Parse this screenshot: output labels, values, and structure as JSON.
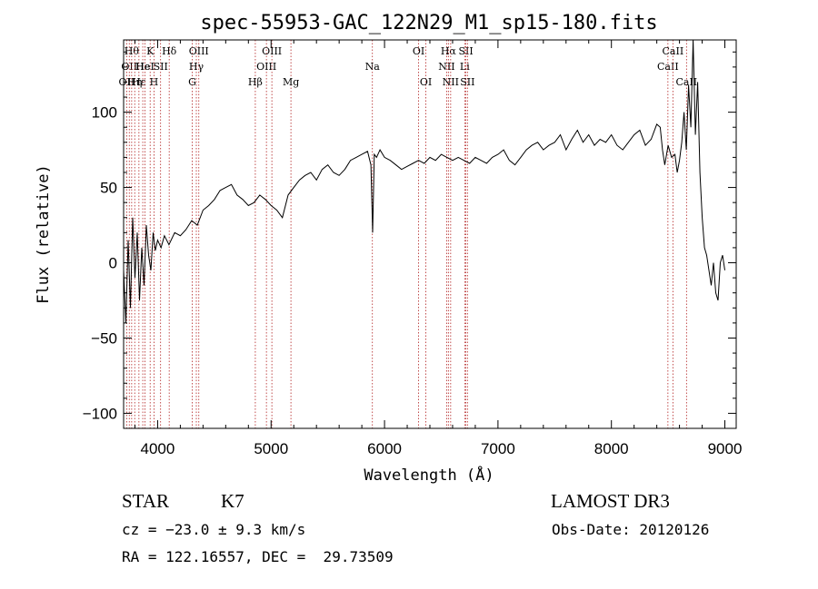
{
  "chart_data": {
    "type": "line",
    "title": "spec-55953-GAC_122N29_M1_sp15-180.fits",
    "xlabel": "Wavelength (Å)",
    "ylabel": "Flux (relative)",
    "xlim": [
      3700,
      9100
    ],
    "ylim": [
      -110,
      148
    ],
    "xticks": [
      4000,
      5000,
      6000,
      7000,
      8000,
      9000
    ],
    "yticks": [
      -100,
      -50,
      0,
      50,
      100
    ],
    "series": [
      {
        "name": "",
        "x": [
          3700,
          3720,
          3740,
          3760,
          3780,
          3800,
          3820,
          3840,
          3860,
          3880,
          3900,
          3920,
          3940,
          3960,
          3980,
          4000,
          4030,
          4060,
          4100,
          4150,
          4200,
          4250,
          4300,
          4350,
          4400,
          4450,
          4500,
          4550,
          4600,
          4650,
          4700,
          4750,
          4800,
          4850,
          4900,
          4950,
          5000,
          5050,
          5100,
          5150,
          5200,
          5250,
          5300,
          5350,
          5400,
          5450,
          5500,
          5550,
          5600,
          5650,
          5700,
          5750,
          5800,
          5850,
          5880,
          5895,
          5910,
          5930,
          5960,
          6000,
          6050,
          6100,
          6150,
          6200,
          6250,
          6300,
          6350,
          6400,
          6450,
          6500,
          6550,
          6600,
          6650,
          6700,
          6750,
          6800,
          6850,
          6900,
          6950,
          7000,
          7050,
          7100,
          7150,
          7200,
          7250,
          7300,
          7350,
          7400,
          7450,
          7500,
          7550,
          7600,
          7650,
          7700,
          7750,
          7800,
          7850,
          7900,
          7950,
          8000,
          8050,
          8100,
          8150,
          8200,
          8250,
          8300,
          8350,
          8400,
          8430,
          8450,
          8470,
          8500,
          8530,
          8560,
          8580,
          8600,
          8620,
          8640,
          8660,
          8680,
          8700,
          8720,
          8740,
          8760,
          8780,
          8800,
          8820,
          8840,
          8860,
          8880,
          8900,
          8920,
          8940,
          8960,
          8980,
          9000
        ],
        "y": [
          -5,
          -40,
          15,
          -30,
          30,
          -10,
          20,
          -25,
          10,
          -15,
          25,
          5,
          -5,
          20,
          8,
          15,
          10,
          18,
          12,
          20,
          18,
          22,
          28,
          25,
          35,
          38,
          42,
          48,
          50,
          52,
          45,
          42,
          38,
          40,
          45,
          42,
          38,
          35,
          30,
          45,
          50,
          55,
          58,
          60,
          55,
          62,
          65,
          60,
          58,
          62,
          68,
          70,
          72,
          74,
          65,
          20,
          72,
          70,
          75,
          70,
          68,
          65,
          62,
          64,
          66,
          68,
          66,
          70,
          68,
          72,
          70,
          68,
          70,
          68,
          66,
          70,
          68,
          66,
          70,
          72,
          75,
          68,
          65,
          70,
          75,
          78,
          80,
          75,
          78,
          80,
          85,
          75,
          82,
          88,
          80,
          85,
          78,
          82,
          80,
          85,
          78,
          75,
          80,
          85,
          88,
          78,
          82,
          92,
          90,
          75,
          65,
          78,
          70,
          72,
          60,
          68,
          80,
          100,
          75,
          118,
          90,
          148,
          85,
          120,
          60,
          30,
          10,
          5,
          -5,
          -15,
          0,
          -20,
          -25,
          0,
          5,
          -5
        ]
      }
    ],
    "spectral_lines": [
      {
        "wave": 3727,
        "label": "OII",
        "row": 2
      },
      {
        "wave": 3750,
        "label": "OII",
        "row": 1
      },
      {
        "wave": 3771,
        "label": "Hθ",
        "row": 0
      },
      {
        "wave": 3798,
        "label": "Hη",
        "row": 2
      },
      {
        "wave": 3835,
        "label": "Hε",
        "row": 2
      },
      {
        "wave": 3869,
        "label": "He",
        "row": 1
      },
      {
        "wave": 3889,
        "label": "HeI",
        "row": 1
      },
      {
        "wave": 3934,
        "label": "K",
        "row": 0
      },
      {
        "wave": 3968,
        "label": "H",
        "row": 2
      },
      {
        "wave": 4026,
        "label": "SII",
        "row": 1
      },
      {
        "wave": 4102,
        "label": "Hδ",
        "row": 0
      },
      {
        "wave": 4305,
        "label": "G",
        "row": 2
      },
      {
        "wave": 4341,
        "label": "Hγ",
        "row": 1
      },
      {
        "wave": 4363,
        "label": "OIII",
        "row": 0
      },
      {
        "wave": 4861,
        "label": "Hβ",
        "row": 2
      },
      {
        "wave": 4959,
        "label": "OIII",
        "row": 1
      },
      {
        "wave": 5007,
        "label": "OIII",
        "row": 0
      },
      {
        "wave": 5175,
        "label": "Mg",
        "row": 2
      },
      {
        "wave": 5893,
        "label": "Na",
        "row": 1
      },
      {
        "wave": 6300,
        "label": "OI",
        "row": 0
      },
      {
        "wave": 6364,
        "label": "OI",
        "row": 2
      },
      {
        "wave": 6548,
        "label": "NII",
        "row": 1
      },
      {
        "wave": 6563,
        "label": "Hα",
        "row": 0
      },
      {
        "wave": 6583,
        "label": "NII",
        "row": 2
      },
      {
        "wave": 6707,
        "label": "Li",
        "row": 1
      },
      {
        "wave": 6717,
        "label": "SII",
        "row": 0
      },
      {
        "wave": 6731,
        "label": "SII",
        "row": 2
      },
      {
        "wave": 8498,
        "label": "CaII",
        "row": 1
      },
      {
        "wave": 8542,
        "label": "CaII",
        "row": 0
      },
      {
        "wave": 8662,
        "label": "CaII",
        "row": 2
      }
    ]
  },
  "info": {
    "class_label": "STAR",
    "subclass": "K7",
    "survey": "LAMOST DR3",
    "cz": "cz = −23.0 ± 9.3 km/s",
    "obs_date": "Obs-Date: 20120126",
    "coords": "RA = 122.16557, DEC =  29.73509"
  }
}
